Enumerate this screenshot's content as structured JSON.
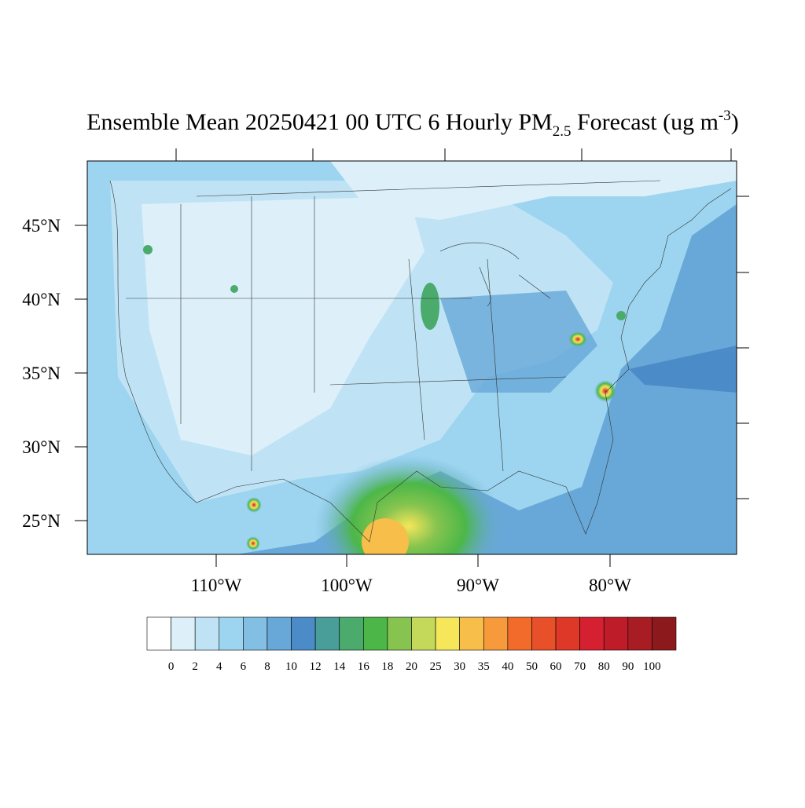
{
  "title": {
    "main": "Ensemble Mean 20250421 00 UTC 6 Hourly PM",
    "subscript": "2.5",
    "middle": " Forecast (ug m",
    "superscript": "-3",
    "end": ")"
  },
  "map": {
    "lat_labels": [
      "45°N",
      "40°N",
      "35°N",
      "30°N",
      "25°N"
    ],
    "lon_labels": [
      "110°W",
      "100°W",
      "90°W",
      "80°W"
    ]
  },
  "colorbar": {
    "labels": [
      "0",
      "2",
      "4",
      "6",
      "8",
      "10",
      "12",
      "14",
      "16",
      "18",
      "20",
      "25",
      "30",
      "35",
      "40",
      "50",
      "60",
      "70",
      "80",
      "90",
      "100"
    ],
    "colors": [
      "#ffffff",
      "#ddf0fa",
      "#bfe3f5",
      "#9dd5f0",
      "#82bfe3",
      "#68a8d8",
      "#4b8cc8",
      "#4a9e9a",
      "#4aab6c",
      "#4cb748",
      "#86c44f",
      "#c4d85a",
      "#f6e65a",
      "#f7be4a",
      "#f69a3c",
      "#f26b2a",
      "#e8502a",
      "#de3828",
      "#d42030",
      "#bf1c2a",
      "#a81c24",
      "#8c1a1c"
    ]
  }
}
